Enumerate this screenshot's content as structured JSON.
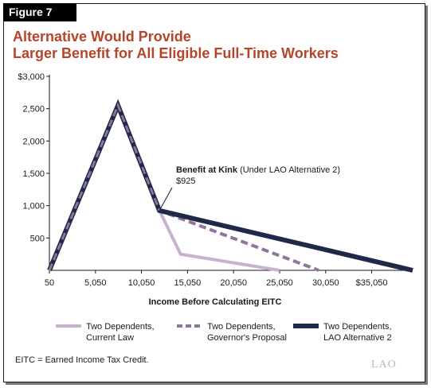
{
  "figure_label": "Figure 7",
  "title_lines": [
    "Alternative Would Provide",
    "Larger Benefit for All Eligible Full-Time Workers"
  ],
  "footnote": "EITC = Earned Income Tax Credit.",
  "logo": "LAO",
  "colors": {
    "title": "#b5442b",
    "current_law": "#c7b3cd",
    "governors_proposal": "#8f7599",
    "lao_alternative": "#1e2a48",
    "axis": "#1a1a1a"
  },
  "chart_data": {
    "type": "line",
    "title": "",
    "xlabel": "Income Before Calculating EITC",
    "ylabel": "",
    "xlim": [
      50,
      39500
    ],
    "ylim": [
      0,
      3000
    ],
    "x_ticks": [
      50,
      5050,
      10050,
      15050,
      20050,
      25050,
      30050,
      35050
    ],
    "x_tick_labels": [
      "50",
      "5,050",
      "10,050",
      "15,050",
      "20,050",
      "25,050",
      "30,050",
      "$35,050"
    ],
    "y_ticks": [
      500,
      1000,
      1500,
      2000,
      2500,
      3000
    ],
    "y_tick_labels": [
      "500",
      "1,000",
      "1,500",
      "2,000",
      "2,500",
      "$3,000"
    ],
    "series": [
      {
        "key": "current_law",
        "name": "Two Dependents, Current Law",
        "legend_lines": [
          "Two Dependents,",
          "Current Law"
        ],
        "style": "solid",
        "x": [
          50,
          7500,
          12000,
          14300,
          25050
        ],
        "y": [
          0,
          2550,
          925,
          250,
          0
        ]
      },
      {
        "key": "governors_proposal",
        "name": "Two Dependents, Governor's Proposal",
        "legend_lines": [
          "Two Dependents,",
          "Governor's Proposal"
        ],
        "style": "dashed",
        "x": [
          50,
          7500,
          12000,
          29300
        ],
        "y": [
          0,
          2550,
          925,
          0
        ]
      },
      {
        "key": "lao_alternative",
        "name": "Two Dependents, LAO Alternative 2",
        "legend_lines": [
          "Two Dependents,",
          "LAO Alternative 2"
        ],
        "style": "solid-thick",
        "x": [
          50,
          7500,
          12000,
          39500
        ],
        "y": [
          0,
          2550,
          925,
          0
        ]
      }
    ],
    "annotation": {
      "bold": "Benefit at Kink",
      "rest": " (Under LAO Alternative 2)",
      "value_label": "$925",
      "x": 12000,
      "y": 925
    },
    "grid": false,
    "legend_position": "bottom"
  }
}
